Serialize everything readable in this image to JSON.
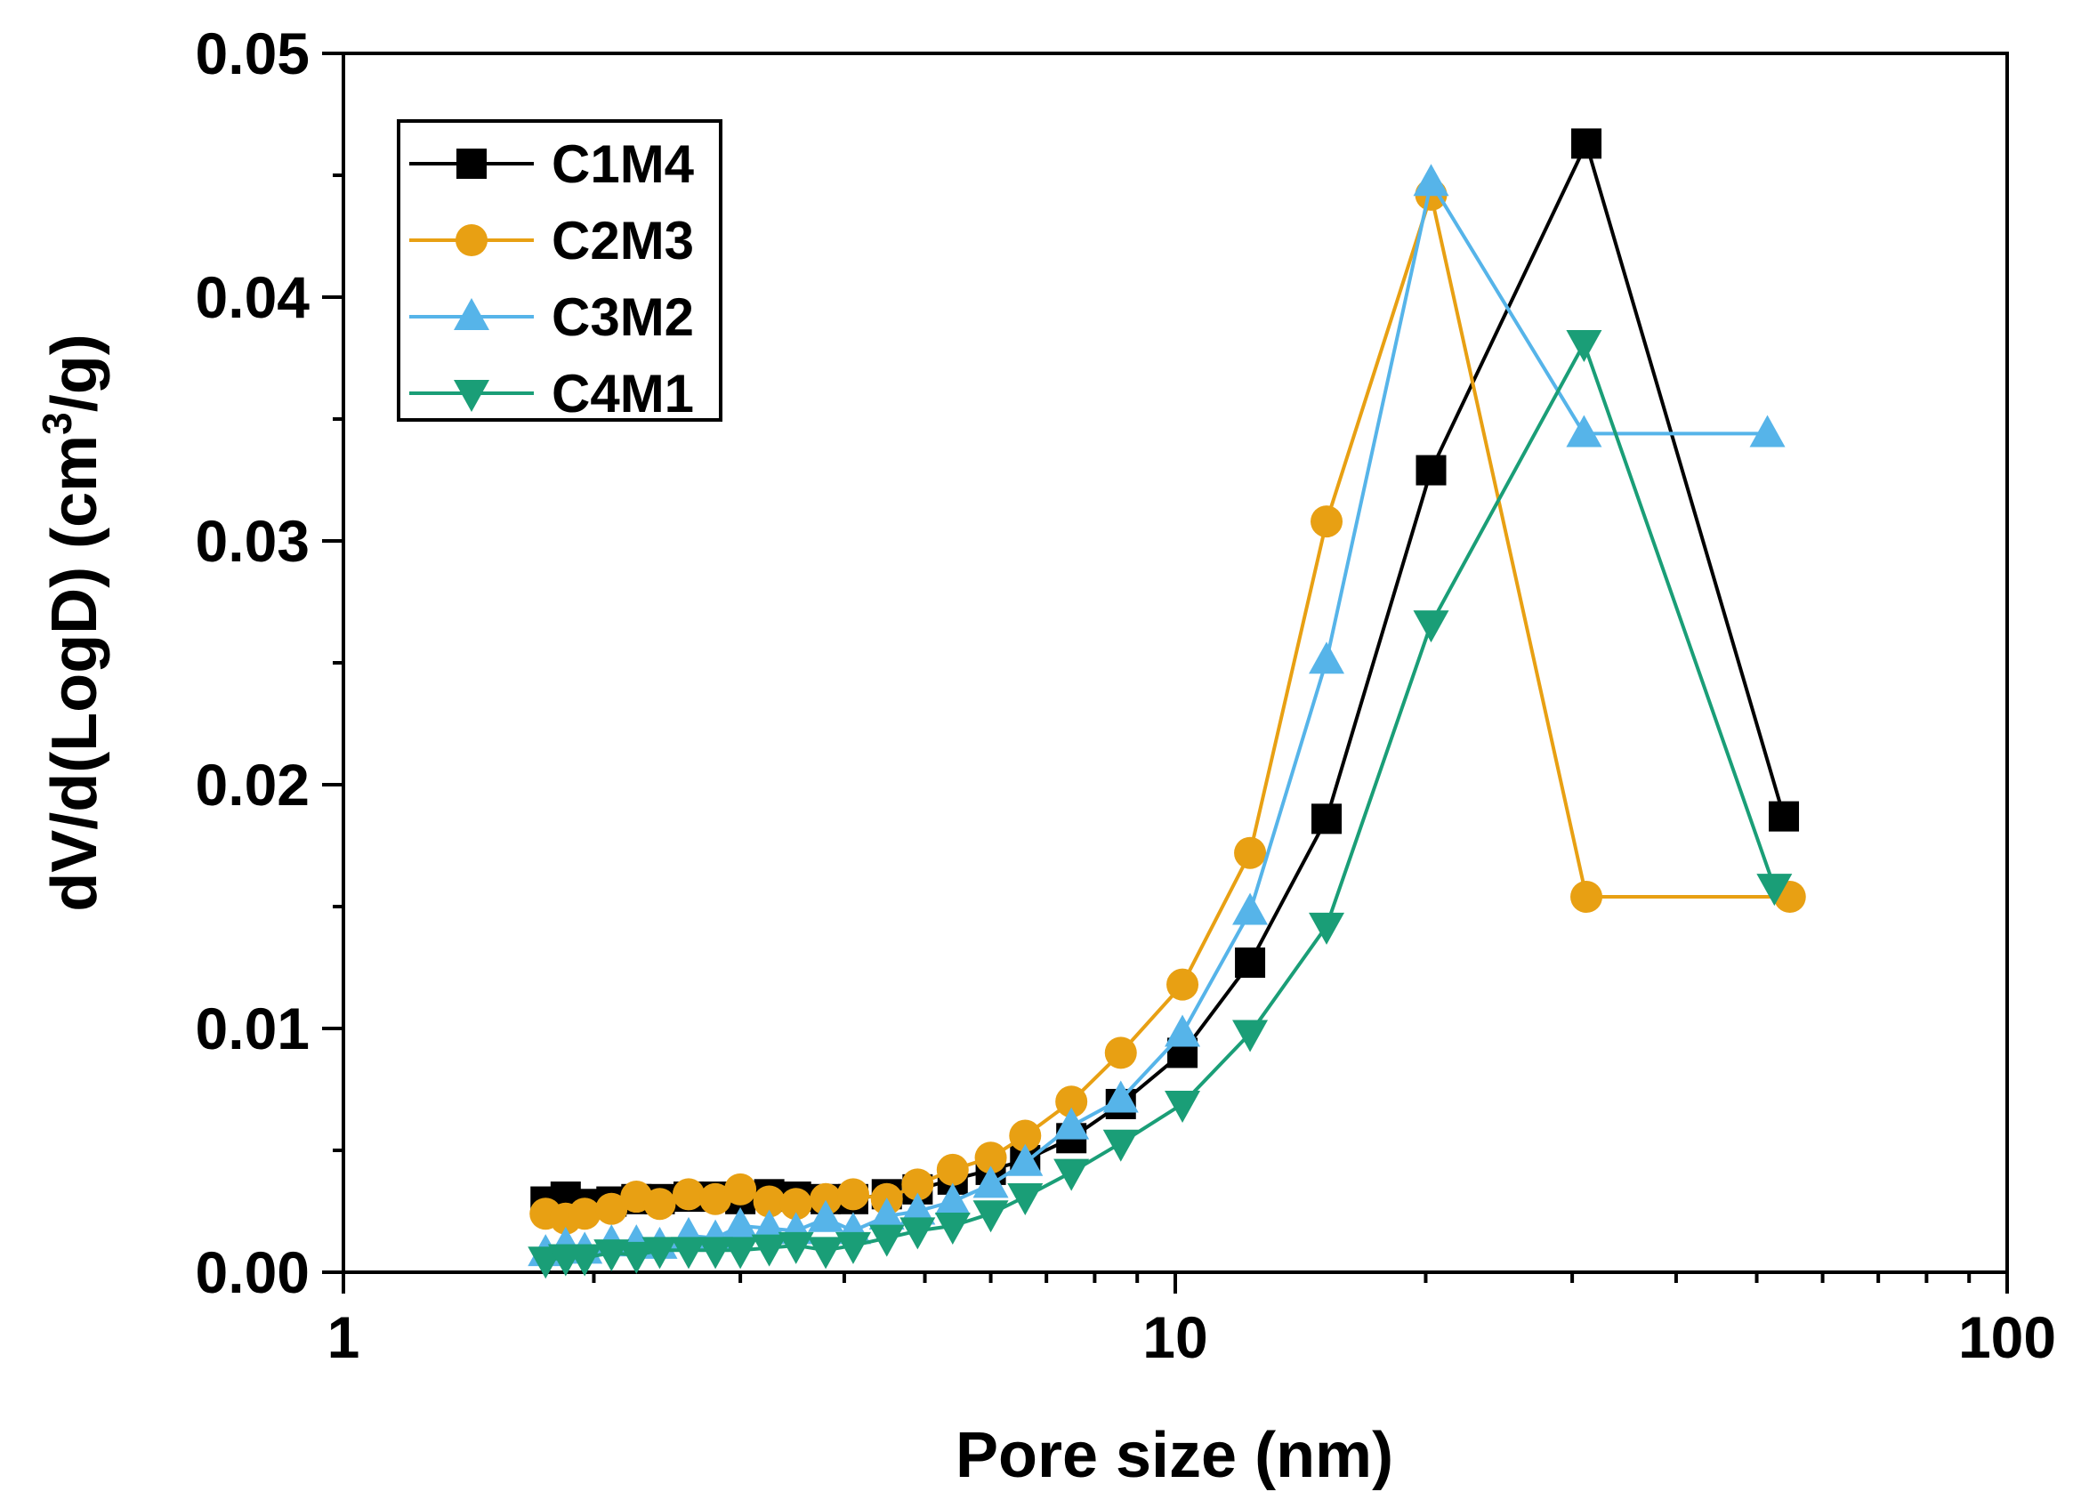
{
  "chart_data": {
    "type": "line",
    "title": "",
    "xlabel": "Pore size (nm)",
    "ylabel": "dV/d(LogD) (cm³/g)",
    "ylabel_parts": {
      "before": "dV/d(LogD) (cm",
      "sup": "3",
      "after": "/g)"
    },
    "xscale": "log",
    "xlim": [
      1,
      100
    ],
    "ylim": [
      0,
      0.05
    ],
    "xticks": [
      1,
      10,
      100
    ],
    "xtick_labels": [
      "1",
      "10",
      "100"
    ],
    "yticks": [
      0,
      0.01,
      0.02,
      0.03,
      0.04,
      0.05
    ],
    "ytick_labels": [
      "0.00",
      "0.01",
      "0.02",
      "0.03",
      "0.04",
      "0.05"
    ],
    "grid": false,
    "legend_position": "top-left",
    "series": [
      {
        "name": "C1M4",
        "color": "#000000",
        "marker": "square",
        "x": [
          1.75,
          1.85,
          1.95,
          2.1,
          2.25,
          2.4,
          2.6,
          2.8,
          3.0,
          3.25,
          3.5,
          3.8,
          4.1,
          4.5,
          4.9,
          5.4,
          6.0,
          6.6,
          7.5,
          8.6,
          10.2,
          12.3,
          15.2,
          20.3,
          31.2,
          53.9
        ],
        "y": [
          0.0029,
          0.0031,
          0.0028,
          0.0029,
          0.003,
          0.003,
          0.0031,
          0.0031,
          0.003,
          0.0032,
          0.0031,
          0.003,
          0.003,
          0.0032,
          0.0034,
          0.0038,
          0.0042,
          0.0046,
          0.0055,
          0.0069,
          0.009,
          0.0127,
          0.0186,
          0.0329,
          0.0463,
          0.0187
        ]
      },
      {
        "name": "C2M3",
        "color": "#E8A013",
        "marker": "circle",
        "x": [
          1.75,
          1.85,
          1.95,
          2.1,
          2.25,
          2.4,
          2.6,
          2.8,
          3.0,
          3.25,
          3.5,
          3.8,
          4.1,
          4.5,
          4.9,
          5.4,
          6.0,
          6.6,
          7.5,
          8.6,
          10.2,
          12.3,
          15.2,
          20.3,
          31.2,
          54.8
        ],
        "y": [
          0.0024,
          0.0022,
          0.0024,
          0.0026,
          0.0031,
          0.0028,
          0.0032,
          0.003,
          0.0034,
          0.0029,
          0.0028,
          0.003,
          0.0032,
          0.003,
          0.0036,
          0.0042,
          0.0047,
          0.0056,
          0.007,
          0.009,
          0.0118,
          0.0172,
          0.0308,
          0.0442,
          0.0154,
          0.0154
        ]
      },
      {
        "name": "C3M2",
        "color": "#56B4E9",
        "marker": "triangle-up",
        "x": [
          1.75,
          1.85,
          1.95,
          2.1,
          2.25,
          2.4,
          2.6,
          2.8,
          3.0,
          3.25,
          3.5,
          3.8,
          4.1,
          4.5,
          4.9,
          5.4,
          6.0,
          6.6,
          7.5,
          8.6,
          10.2,
          12.3,
          15.2,
          20.3,
          31.0,
          51.5
        ],
        "y": [
          0.0008,
          0.0011,
          0.0009,
          0.0012,
          0.0012,
          0.0011,
          0.0015,
          0.0014,
          0.0019,
          0.0018,
          0.0017,
          0.0022,
          0.0017,
          0.0023,
          0.0025,
          0.0029,
          0.0036,
          0.0045,
          0.006,
          0.0071,
          0.0098,
          0.0148,
          0.0251,
          0.0447,
          0.0344,
          0.0344
        ]
      },
      {
        "name": "C4M1",
        "color": "#1A9E77",
        "marker": "triangle-down",
        "x": [
          1.75,
          1.85,
          1.95,
          2.1,
          2.25,
          2.4,
          2.6,
          2.8,
          3.0,
          3.25,
          3.5,
          3.8,
          4.1,
          4.5,
          4.9,
          5.4,
          6.0,
          6.6,
          7.5,
          8.6,
          10.2,
          12.3,
          15.2,
          20.3,
          31.0,
          52.5
        ],
        "y": [
          0.0005,
          0.0006,
          0.0006,
          0.0008,
          0.0007,
          0.0009,
          0.0009,
          0.0009,
          0.0009,
          0.001,
          0.0011,
          0.0009,
          0.0011,
          0.0014,
          0.0017,
          0.0019,
          0.0024,
          0.0031,
          0.0041,
          0.0053,
          0.0069,
          0.0098,
          0.0142,
          0.0266,
          0.0381,
          0.0158
        ]
      }
    ]
  }
}
